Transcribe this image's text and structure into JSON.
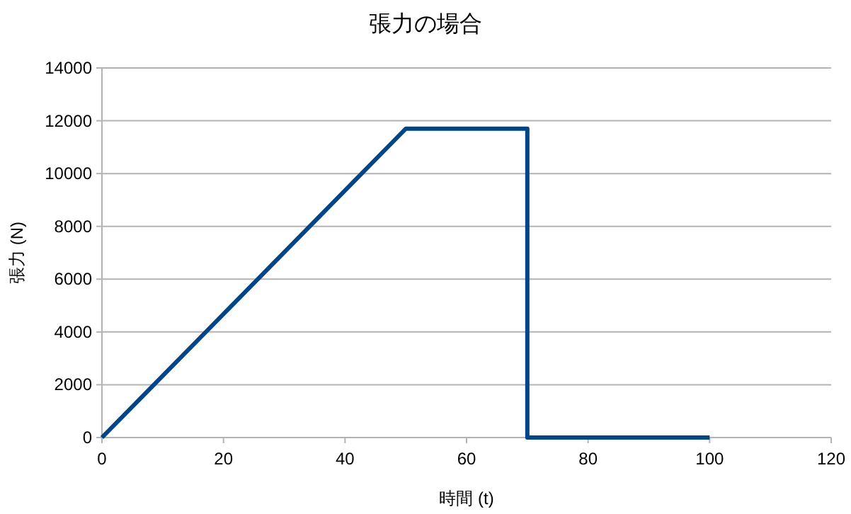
{
  "chart_data": {
    "type": "line",
    "title": "張力の場合",
    "xlabel": "時間 (t)",
    "ylabel": "張力 (N)",
    "x": [
      0,
      50,
      70,
      70,
      100
    ],
    "values": [
      0,
      11700,
      11700,
      0,
      0
    ],
    "color": "#004586",
    "xlim": [
      0,
      120
    ],
    "xticks": [
      0,
      20,
      40,
      60,
      80,
      100,
      120
    ],
    "ylim": [
      0,
      14000
    ],
    "yticks": [
      0,
      2000,
      4000,
      6000,
      8000,
      10000,
      12000,
      14000
    ],
    "grid": "y",
    "marker": "none",
    "line_style": "solid"
  }
}
